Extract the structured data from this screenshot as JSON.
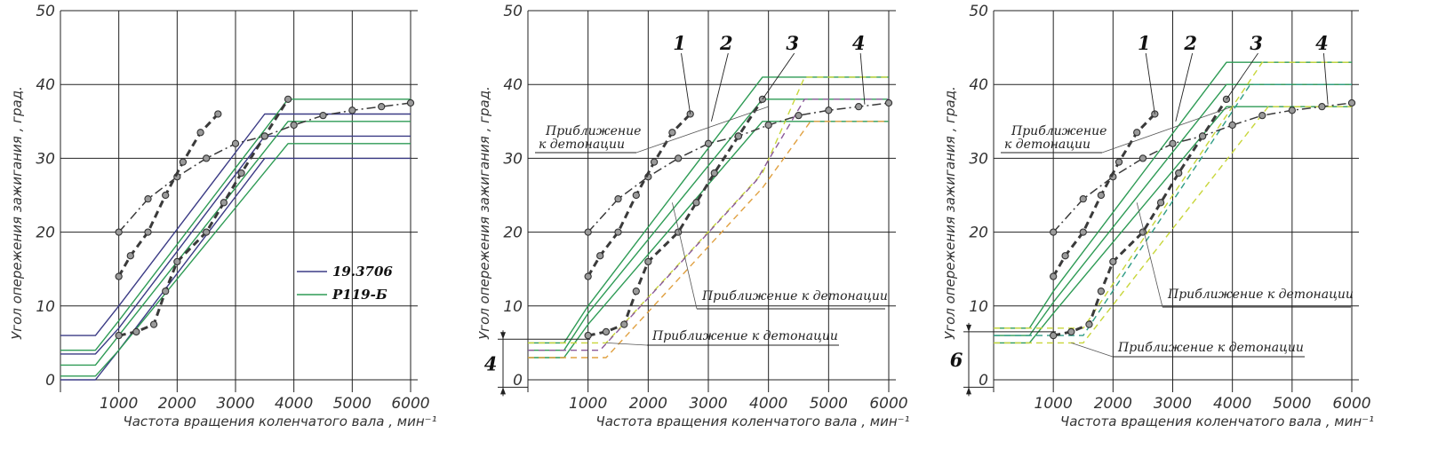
{
  "colors": {
    "grid": "#222222",
    "blue": "#3b3b85",
    "green": "#2e9b55",
    "dark_curve": "#3a3a3a",
    "yellow_dash": "#c8d63a",
    "purple_dash": "#8b5a9a",
    "orange_dash": "#e0a040",
    "teal_dash": "#2f9c86"
  },
  "chart_data": [
    {
      "type": "line",
      "panel": "left",
      "ylabel": "Угол опережения зажигания , град.",
      "xlabel": "Частота вращения коленчатого вала , мин⁻¹",
      "x_ticks": [
        "1000",
        "2000",
        "3000",
        "4000",
        "5000",
        "6000"
      ],
      "y_ticks": [
        "0",
        "10",
        "20",
        "30",
        "40",
        "50"
      ],
      "xlim": [
        0,
        6000
      ],
      "ylim": [
        0,
        50
      ],
      "grid": true,
      "legend": {
        "position": "center-right",
        "entries": [
          {
            "label": "19.3706",
            "color": "#3b3b85"
          },
          {
            "label": "Р119-Б",
            "color": "#2e9b55"
          }
        ]
      },
      "series": [
        {
          "name": "19.3706",
          "color": "#3b3b85",
          "style": "solid",
          "x": [
            0,
            600,
            1000,
            3500,
            6000
          ],
          "y": [
            6,
            6,
            10,
            36,
            36
          ]
        },
        {
          "name": "19.3706",
          "color": "#3b3b85",
          "style": "solid",
          "x": [
            0,
            600,
            1000,
            3500,
            6000
          ],
          "y": [
            3.5,
            3.5,
            7,
            33,
            33
          ]
        },
        {
          "name": "19.3706",
          "color": "#3b3b85",
          "style": "solid",
          "x": [
            0,
            600,
            1000,
            3500,
            6000
          ],
          "y": [
            0,
            0,
            4,
            30,
            30
          ]
        },
        {
          "name": "Р119-Б",
          "color": "#2e9b55",
          "style": "solid",
          "x": [
            0,
            600,
            1000,
            3900,
            6000
          ],
          "y": [
            4,
            4,
            8,
            38,
            38
          ]
        },
        {
          "name": "Р119-Б",
          "color": "#2e9b55",
          "style": "solid",
          "x": [
            0,
            600,
            1000,
            3900,
            6000
          ],
          "y": [
            2,
            2,
            6,
            35,
            35
          ]
        },
        {
          "name": "Р119-Б",
          "color": "#2e9b55",
          "style": "solid",
          "x": [
            0,
            600,
            1000,
            3900,
            6000
          ],
          "y": [
            0.5,
            0.5,
            4,
            32,
            32
          ]
        },
        {
          "color": "#3a3a3a",
          "style": "dashdot",
          "markers": true,
          "x": [
            1000,
            1500,
            2000,
            2500,
            3000,
            3500,
            4000,
            4500,
            5000,
            5500,
            6000
          ],
          "y": [
            20,
            24.5,
            27.5,
            30,
            32,
            33,
            34.5,
            35.8,
            36.5,
            37,
            37.5
          ]
        },
        {
          "color": "#3a3a3a",
          "style": "bolddash",
          "markers": true,
          "x": [
            1000,
            1200,
            1500,
            1800,
            2100,
            2400,
            2700
          ],
          "y": [
            14,
            16.8,
            20,
            25,
            29.5,
            33.5,
            36
          ]
        },
        {
          "color": "#3a3a3a",
          "style": "bolddash",
          "markers": true,
          "x": [
            1000,
            1300,
            1600,
            1800,
            2000,
            2500,
            2800,
            3100,
            3500,
            3900
          ],
          "y": [
            6,
            6.5,
            7.5,
            12,
            16,
            20,
            24,
            28,
            33,
            38
          ]
        }
      ]
    },
    {
      "type": "line",
      "panel": "middle",
      "ylabel": "Угол опережения зажигания , град.",
      "xlabel": "Частота вращения коленчатого вала , мин⁻¹",
      "x_ticks": [
        "1000",
        "2000",
        "3000",
        "4000",
        "5000",
        "6000"
      ],
      "y_ticks": [
        "0",
        "10",
        "20",
        "30",
        "40",
        "50"
      ],
      "xlim": [
        0,
        6000
      ],
      "ylim": [
        0,
        50
      ],
      "grid": true,
      "annotations": [
        "Приближение к детонации",
        "Приближение к детонации",
        "Приближение к детонации",
        "1",
        "2",
        "3",
        "4",
        "4"
      ],
      "series": [
        {
          "color": "#2e9b55",
          "style": "solid",
          "x": [
            0,
            600,
            1000,
            3900,
            6000
          ],
          "y": [
            5,
            5,
            10,
            41,
            41
          ]
        },
        {
          "color": "#2e9b55",
          "style": "solid",
          "x": [
            0,
            600,
            1000,
            3900,
            6000
          ],
          "y": [
            4,
            4,
            9,
            38,
            38
          ]
        },
        {
          "color": "#2e9b55",
          "style": "solid",
          "x": [
            0,
            600,
            1000,
            3900,
            6000
          ],
          "y": [
            3,
            3,
            7.5,
            35,
            35
          ]
        },
        {
          "color": "#c8d63a",
          "style": "dash",
          "x": [
            0,
            1300,
            3900,
            4600,
            6000
          ],
          "y": [
            5,
            5,
            28,
            41,
            41
          ]
        },
        {
          "color": "#8b5a9a",
          "style": "dash",
          "x": [
            0,
            1200,
            3800,
            4600,
            6000
          ],
          "y": [
            4,
            4,
            27,
            38,
            38
          ]
        },
        {
          "color": "#e0a040",
          "style": "dash",
          "x": [
            0,
            1300,
            3900,
            4700,
            6000
          ],
          "y": [
            3,
            3,
            26,
            35,
            35
          ]
        },
        {
          "color": "#3a3a3a",
          "style": "dashdot",
          "markers": true,
          "x": [
            1000,
            1500,
            2000,
            2500,
            3000,
            3500,
            4000,
            4500,
            5000,
            5500,
            6000
          ],
          "y": [
            20,
            24.5,
            27.5,
            30,
            32,
            33,
            34.5,
            35.8,
            36.5,
            37,
            37.5
          ]
        },
        {
          "color": "#3a3a3a",
          "style": "bolddash",
          "markers": true,
          "x": [
            1000,
            1200,
            1500,
            1800,
            2100,
            2400,
            2700
          ],
          "y": [
            14,
            16.8,
            20,
            25,
            29.5,
            33.5,
            36
          ]
        },
        {
          "color": "#3a3a3a",
          "style": "bolddash",
          "markers": true,
          "x": [
            1000,
            1300,
            1600,
            1800,
            2000,
            2500,
            2800,
            3100,
            3500,
            3900
          ],
          "y": [
            6,
            6.5,
            7.5,
            12,
            16,
            20,
            24,
            28,
            33,
            38
          ]
        }
      ]
    },
    {
      "type": "line",
      "panel": "right",
      "ylabel": "Угол опережения зажигания , град.",
      "xlabel": "Частота вращения коленчатого вала , мин⁻¹",
      "x_ticks": [
        "1000",
        "2000",
        "3000",
        "4000",
        "5000",
        "6000"
      ],
      "y_ticks": [
        "0",
        "10",
        "20",
        "30",
        "40",
        "50"
      ],
      "xlim": [
        0,
        6000
      ],
      "ylim": [
        0,
        50
      ],
      "grid": true,
      "annotations": [
        "Приближение к детонации",
        "Приближение к детонации",
        "Приближение к детонации",
        "1",
        "2",
        "3",
        "4",
        "6"
      ],
      "series": [
        {
          "color": "#2e9b55",
          "style": "solid",
          "x": [
            0,
            600,
            1000,
            3900,
            6000
          ],
          "y": [
            7,
            7,
            12,
            43,
            43
          ]
        },
        {
          "color": "#2e9b55",
          "style": "solid",
          "x": [
            0,
            600,
            1000,
            3900,
            6000
          ],
          "y": [
            6,
            6,
            10.5,
            40,
            40
          ]
        },
        {
          "color": "#2e9b55",
          "style": "solid",
          "x": [
            0,
            600,
            1000,
            3900,
            6000
          ],
          "y": [
            5,
            5,
            9,
            37,
            37
          ]
        },
        {
          "color": "#c8d63a",
          "style": "dash",
          "x": [
            0,
            1500,
            4500,
            6000
          ],
          "y": [
            7,
            7,
            43,
            43
          ]
        },
        {
          "color": "#2f9c86",
          "style": "dash",
          "x": [
            0,
            1500,
            4300,
            6000
          ],
          "y": [
            6,
            6,
            40,
            40
          ]
        },
        {
          "color": "#c8d63a",
          "style": "dash",
          "x": [
            0,
            1500,
            4600,
            6000
          ],
          "y": [
            5,
            5,
            37,
            37
          ]
        },
        {
          "color": "#3a3a3a",
          "style": "dashdot",
          "markers": true,
          "x": [
            1000,
            1500,
            2000,
            2500,
            3000,
            3500,
            4000,
            4500,
            5000,
            5500,
            6000
          ],
          "y": [
            20,
            24.5,
            27.5,
            30,
            32,
            33,
            34.5,
            35.8,
            36.5,
            37,
            37.5
          ]
        },
        {
          "color": "#3a3a3a",
          "style": "bolddash",
          "markers": true,
          "x": [
            1000,
            1200,
            1500,
            1800,
            2100,
            2400,
            2700
          ],
          "y": [
            14,
            16.8,
            20,
            25,
            29.5,
            33.5,
            36
          ]
        },
        {
          "color": "#3a3a3a",
          "style": "bolddash",
          "markers": true,
          "x": [
            1000,
            1300,
            1600,
            1800,
            2000,
            2500,
            2800,
            3100,
            3500,
            3900
          ],
          "y": [
            6,
            6.5,
            7.5,
            12,
            16,
            20,
            24,
            28,
            33,
            38
          ]
        }
      ]
    }
  ]
}
